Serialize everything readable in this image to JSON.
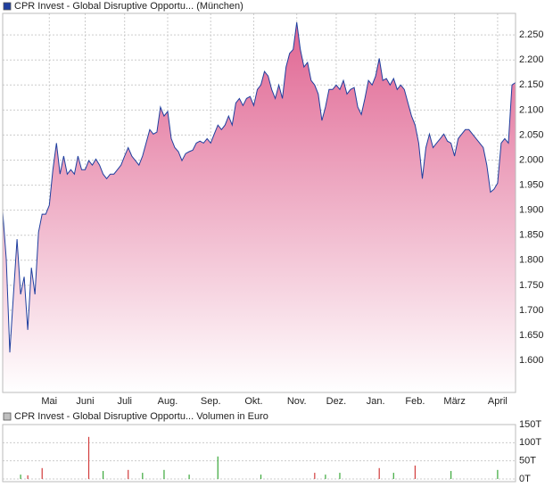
{
  "chart_data": [
    {
      "type": "area",
      "grid": true,
      "series": [
        {
          "name": "CPR Invest - Global Disruptive Opportu... (München)",
          "color": "#1f3f9f",
          "fill": "#e06592",
          "values": [
            1.897,
            1.803,
            1.616,
            1.732,
            1.842,
            1.732,
            1.767,
            1.661,
            1.785,
            1.732,
            1.856,
            1.892,
            1.892,
            1.91,
            1.981,
            2.034,
            1.972,
            2.008,
            1.972,
            1.981,
            1.972,
            2.008,
            1.981,
            1.981,
            1.999,
            1.99,
            2.002,
            1.99,
            1.972,
            1.963,
            1.972,
            1.972,
            1.981,
            1.99,
            2.008,
            2.025,
            2.008,
            1.999,
            1.99,
            2.008,
            2.034,
            2.061,
            2.052,
            2.056,
            2.106,
            2.088,
            2.097,
            2.043,
            2.025,
            2.017,
            1.999,
            2.013,
            2.017,
            2.02,
            2.034,
            2.038,
            2.034,
            2.043,
            2.034,
            2.052,
            2.07,
            2.061,
            2.07,
            2.088,
            2.07,
            2.114,
            2.123,
            2.109,
            2.123,
            2.127,
            2.109,
            2.141,
            2.15,
            2.177,
            2.168,
            2.141,
            2.123,
            2.15,
            2.123,
            2.186,
            2.213,
            2.221,
            2.275,
            2.221,
            2.186,
            2.195,
            2.159,
            2.15,
            2.132,
            2.079,
            2.106,
            2.141,
            2.141,
            2.15,
            2.141,
            2.159,
            2.132,
            2.141,
            2.145,
            2.106,
            2.091,
            2.123,
            2.159,
            2.15,
            2.168,
            2.203,
            2.159,
            2.163,
            2.15,
            2.163,
            2.141,
            2.15,
            2.141,
            2.114,
            2.088,
            2.07,
            2.034,
            1.963,
            2.025,
            2.052,
            2.025,
            2.034,
            2.043,
            2.052,
            2.038,
            2.034,
            2.008,
            2.043,
            2.052,
            2.061,
            2.061,
            2.052,
            2.043,
            2.034,
            2.025,
            1.99,
            1.936,
            1.942,
            1.954,
            2.034,
            2.043,
            2.034,
            2.15,
            2.155
          ]
        }
      ],
      "xlim": [
        0,
        143
      ],
      "xticks": [
        {
          "value": 13,
          "label": "Mai"
        },
        {
          "value": 23,
          "label": "Juni"
        },
        {
          "value": 34,
          "label": "Juli"
        },
        {
          "value": 46,
          "label": "Aug."
        },
        {
          "value": 58,
          "label": "Sep."
        },
        {
          "value": 70,
          "label": "Okt."
        },
        {
          "value": 82,
          "label": "Nov."
        },
        {
          "value": 93,
          "label": "Dez."
        },
        {
          "value": 104,
          "label": "Jan."
        },
        {
          "value": 115,
          "label": "Feb."
        },
        {
          "value": 126,
          "label": "März"
        },
        {
          "value": 138,
          "label": "April"
        }
      ],
      "ylim": [
        1.536,
        2.293
      ],
      "yticks": [
        {
          "value": 1.6,
          "label": "1.600"
        },
        {
          "value": 1.65,
          "label": "1.650"
        },
        {
          "value": 1.7,
          "label": "1.700"
        },
        {
          "value": 1.75,
          "label": "1.750"
        },
        {
          "value": 1.8,
          "label": "1.800"
        },
        {
          "value": 1.85,
          "label": "1.850"
        },
        {
          "value": 1.9,
          "label": "1.900"
        },
        {
          "value": 1.95,
          "label": "1.950"
        },
        {
          "value": 2.0,
          "label": "2.000"
        },
        {
          "value": 2.05,
          "label": "2.050"
        },
        {
          "value": 2.1,
          "label": "2.100"
        },
        {
          "value": 2.15,
          "label": "2.150"
        },
        {
          "value": 2.2,
          "label": "2.200"
        },
        {
          "value": 2.25,
          "label": "2.250"
        }
      ]
    },
    {
      "type": "bar",
      "grid": true,
      "series": [
        {
          "name": "CPR Invest - Global Disruptive Opportu... Volumen in Euro",
          "color": "#c0c0c0",
          "x": [
            5,
            7,
            11,
            24,
            28,
            35,
            39,
            45,
            52,
            60,
            72,
            87,
            90,
            94,
            105,
            109,
            115,
            125,
            138
          ],
          "values": [
            12000,
            10000,
            30000,
            116000,
            22000,
            25000,
            17000,
            25000,
            12000,
            62000,
            12000,
            17000,
            12000,
            17000,
            30000,
            17000,
            37000,
            22000,
            25000
          ],
          "colors": [
            "#3aa83a",
            "#d23c3c",
            "#d23c3c",
            "#d23c3c",
            "#3aa83a",
            "#d23c3c",
            "#3aa83a",
            "#3aa83a",
            "#3aa83a",
            "#3aa83a",
            "#3aa83a",
            "#d23c3c",
            "#3aa83a",
            "#3aa83a",
            "#d23c3c",
            "#3aa83a",
            "#d23c3c",
            "#3aa83a",
            "#3aa83a"
          ]
        }
      ],
      "xlim": [
        0,
        143
      ],
      "ylim": [
        -7400,
        150000
      ],
      "yticks": [
        {
          "value": 0,
          "label": "0T"
        },
        {
          "value": 50000,
          "label": "50T"
        },
        {
          "value": 100000,
          "label": "100T"
        },
        {
          "value": 150000,
          "label": "150T"
        }
      ]
    }
  ]
}
